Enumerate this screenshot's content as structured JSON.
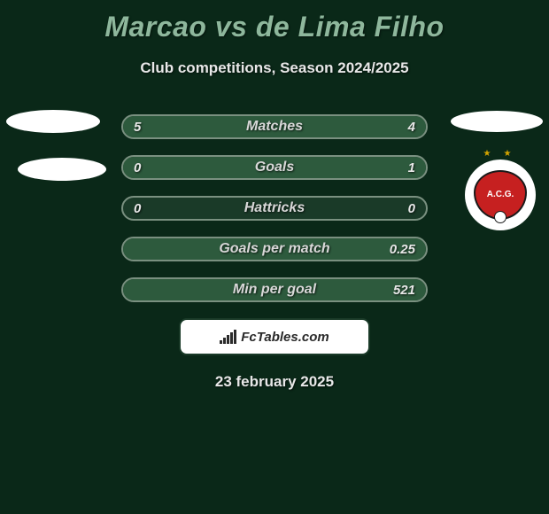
{
  "title": "Marcao vs de Lima Filho",
  "subtitle": "Club competitions, Season 2024/2025",
  "date": "23 february 2025",
  "logo_text": "FcTables.com",
  "colors": {
    "background": "#0a2818",
    "title_color": "#8eb79c",
    "text_color": "#e8e8e8",
    "bar_background": "#1a3a28",
    "bar_border": "#7a9080",
    "bar_fill": "#2d5a3d",
    "badge_red": "#c62020"
  },
  "stats": [
    {
      "label": "Matches",
      "left_value": "5",
      "right_value": "4",
      "left_fill_pct": 55,
      "right_fill_pct": 45
    },
    {
      "label": "Goals",
      "left_value": "0",
      "right_value": "1",
      "left_fill_pct": 0,
      "right_fill_pct": 100
    },
    {
      "label": "Hattricks",
      "left_value": "0",
      "right_value": "0",
      "left_fill_pct": 0,
      "right_fill_pct": 0
    },
    {
      "label": "Goals per match",
      "left_value": "",
      "right_value": "0.25",
      "left_fill_pct": 0,
      "right_fill_pct": 100
    },
    {
      "label": "Min per goal",
      "left_value": "",
      "right_value": "521",
      "left_fill_pct": 0,
      "right_fill_pct": 100
    }
  ],
  "club_badge": {
    "text": "A.C.G.",
    "stars": "★★"
  }
}
